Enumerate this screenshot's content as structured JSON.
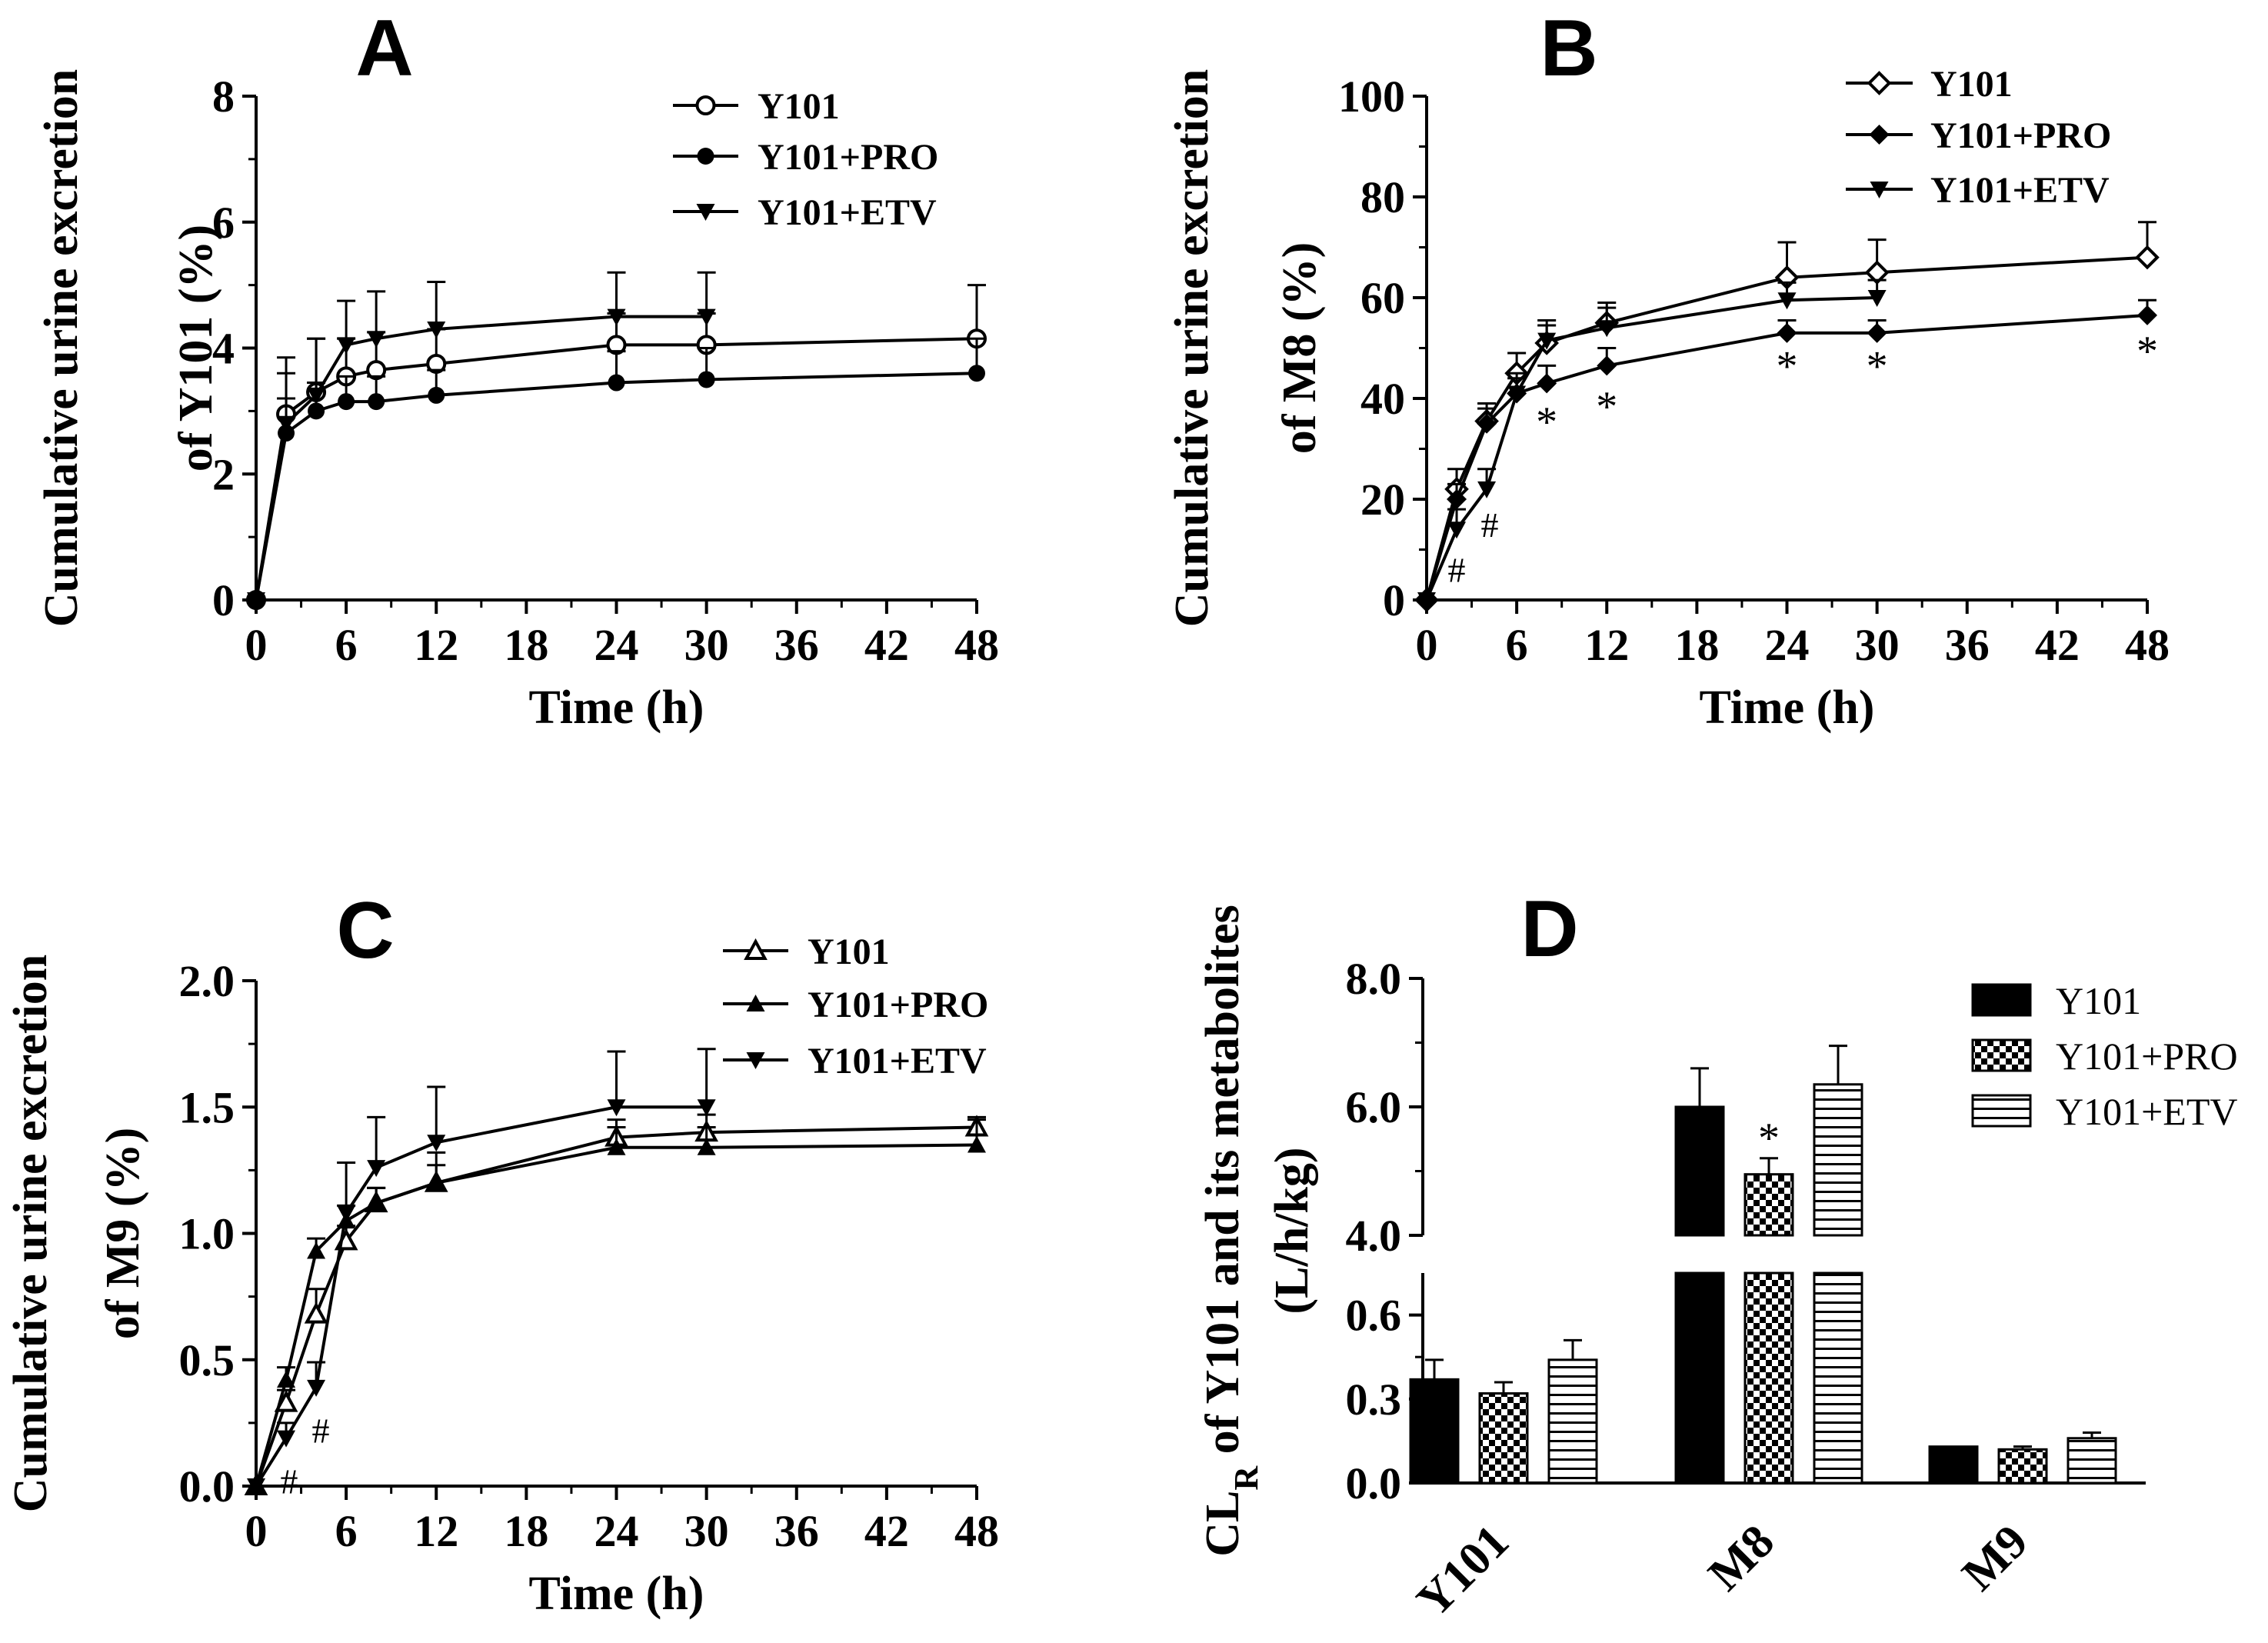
{
  "chart_data": [
    {
      "panel": "A",
      "type": "line",
      "ylabel": [
        "Cumulative urine excretion",
        "of Y101 (%)"
      ],
      "xlabel": "Time (h)",
      "xlim": [
        0,
        48
      ],
      "ylim": [
        0,
        8
      ],
      "xticks": [
        "0",
        "6",
        "12",
        "18",
        "24",
        "30",
        "36",
        "42",
        "48"
      ],
      "yticks": [
        "0",
        "2",
        "4",
        "6",
        "8"
      ],
      "series": [
        {
          "name": "Y101",
          "marker": "circle-open",
          "x": [
            0,
            2,
            4,
            6,
            8,
            12,
            24,
            30,
            48
          ],
          "values": [
            0,
            2.95,
            3.3,
            3.55,
            3.65,
            3.75,
            4.05,
            4.05,
            4.15
          ],
          "err": [
            0,
            0.9,
            0.85,
            0.6,
            0.6,
            0.55,
            0.5,
            0.5,
            0.85
          ]
        },
        {
          "name": "Y101+PRO",
          "marker": "circle-filled",
          "x": [
            0,
            2,
            4,
            6,
            8,
            12,
            24,
            30,
            48
          ],
          "values": [
            0,
            2.65,
            3.0,
            3.15,
            3.15,
            3.25,
            3.45,
            3.5,
            3.6
          ],
          "err": [
            0,
            0.55,
            0.45,
            0.4,
            0.4,
            0.4,
            0.5,
            0.5,
            0.55
          ]
        },
        {
          "name": "Y101+ETV",
          "marker": "triangle-down",
          "x": [
            0,
            2,
            4,
            6,
            8,
            12,
            24,
            30
          ],
          "values": [
            0,
            2.8,
            3.25,
            4.05,
            4.15,
            4.3,
            4.5,
            4.5
          ],
          "err": [
            0,
            0.8,
            0.9,
            0.7,
            0.75,
            0.75,
            0.7,
            0.7
          ]
        }
      ]
    },
    {
      "panel": "B",
      "type": "line",
      "ylabel": [
        "Cumulative urine excretion",
        "of M8 (%)"
      ],
      "xlabel": "Time (h)",
      "xlim": [
        0,
        48
      ],
      "ylim": [
        0,
        100
      ],
      "xticks": [
        "0",
        "6",
        "12",
        "18",
        "24",
        "30",
        "36",
        "42",
        "48"
      ],
      "yticks": [
        "0",
        "20",
        "40",
        "60",
        "80",
        "100"
      ],
      "series": [
        {
          "name": "Y101",
          "marker": "diamond-open",
          "x": [
            0,
            2,
            4,
            6,
            8,
            12,
            24,
            30,
            48
          ],
          "values": [
            0,
            22,
            35.5,
            45,
            51,
            55,
            64,
            65,
            68
          ],
          "err": [
            0,
            4,
            3.5,
            4,
            3.5,
            4,
            7,
            6.5,
            7
          ]
        },
        {
          "name": "Y101+PRO",
          "marker": "diamond-filled",
          "x": [
            0,
            2,
            4,
            6,
            8,
            12,
            24,
            30,
            48
          ],
          "values": [
            0,
            20,
            35,
            41,
            43,
            46.5,
            53,
            53,
            56.5
          ],
          "err": [
            0,
            3,
            3,
            3,
            3.5,
            3.5,
            2.5,
            2.5,
            3
          ]
        },
        {
          "name": "Y101+ETV",
          "marker": "triangle-down",
          "x": [
            0,
            2,
            4,
            6,
            8,
            12,
            24,
            30
          ],
          "values": [
            0,
            14,
            22,
            41,
            51.5,
            54,
            59.5,
            60
          ],
          "err": [
            0,
            4,
            4,
            4,
            4,
            4,
            3.5,
            3.5
          ]
        }
      ],
      "annotations": [
        {
          "text": "#",
          "x": 2,
          "y": 6
        },
        {
          "text": "#",
          "x": 4.2,
          "y": 15
        },
        {
          "text": "*",
          "x": 8,
          "y": 35
        },
        {
          "text": "*",
          "x": 12,
          "y": 38
        },
        {
          "text": "*",
          "x": 24,
          "y": 46
        },
        {
          "text": "*",
          "x": 30,
          "y": 46
        },
        {
          "text": "*",
          "x": 48,
          "y": 49
        }
      ]
    },
    {
      "panel": "C",
      "type": "line",
      "ylabel": [
        "Cumulative urine excretion",
        "of M9 (%)"
      ],
      "xlabel": "Time (h)",
      "xlim": [
        0,
        48
      ],
      "ylim": [
        0,
        2
      ],
      "xticks": [
        "0",
        "6",
        "12",
        "18",
        "24",
        "30",
        "36",
        "42",
        "48"
      ],
      "yticks": [
        "0.0",
        "0.5",
        "1.0",
        "1.5",
        "2.0"
      ],
      "series": [
        {
          "name": "Y101",
          "marker": "triangle-open",
          "x": [
            0,
            2,
            4,
            6,
            8,
            12,
            24,
            30,
            48
          ],
          "values": [
            0,
            0.33,
            0.68,
            0.97,
            1.12,
            1.2,
            1.38,
            1.4,
            1.42
          ],
          "err": [
            0,
            0.05,
            0.1,
            0.06,
            0.06,
            0.07,
            0.07,
            0.07,
            0.04
          ]
        },
        {
          "name": "Y101+PRO",
          "marker": "triangle-filled",
          "x": [
            0,
            2,
            4,
            6,
            8,
            12,
            24,
            30,
            48
          ],
          "values": [
            0,
            0.42,
            0.93,
            1.05,
            1.12,
            1.2,
            1.34,
            1.34,
            1.35
          ],
          "err": [
            0,
            0.05,
            0.05,
            0.06,
            0.06,
            0.12,
            0.08,
            0.08,
            0.1
          ]
        },
        {
          "name": "Y101+ETV",
          "marker": "triangle-down",
          "x": [
            0,
            2,
            4,
            6,
            8,
            12,
            24,
            30
          ],
          "values": [
            0,
            0.19,
            0.39,
            1.08,
            1.26,
            1.36,
            1.5,
            1.5
          ],
          "err": [
            0,
            0.06,
            0.1,
            0.2,
            0.2,
            0.22,
            0.22,
            0.23
          ]
        }
      ],
      "annotations": [
        {
          "text": "#",
          "x": 2.2,
          "y": 0.02
        },
        {
          "text": "#",
          "x": 4.3,
          "y": 0.22
        }
      ]
    },
    {
      "panel": "D",
      "type": "bar",
      "ylabel": [
        "CL",
        "R",
        " of Y101 and its metabolites",
        "(L/h/kg)"
      ],
      "categories": [
        "Y101",
        "M8",
        "M9"
      ],
      "ylim_lower": [
        0,
        0.75
      ],
      "ylim_upper": [
        4.0,
        8.0
      ],
      "yticks_lower": [
        "0.0",
        "0.3",
        "0.6"
      ],
      "yticks_upper": [
        "4.0",
        "6.0",
        "8.0"
      ],
      "series": [
        {
          "name": "Y101",
          "fill": "solid",
          "values": [
            0.37,
            6.0,
            0.13
          ],
          "err": [
            0.07,
            0.6,
            0.0
          ]
        },
        {
          "name": "Y101+PRO",
          "fill": "checker",
          "values": [
            0.32,
            4.95,
            0.12
          ],
          "err": [
            0.04,
            0.25,
            0.01
          ]
        },
        {
          "name": "Y101+ETV",
          "fill": "hstripe",
          "values": [
            0.44,
            6.35,
            0.16
          ],
          "err": [
            0.07,
            0.6,
            0.02
          ]
        }
      ],
      "annotations": [
        {
          "text": "*",
          "category": "M8",
          "series": "Y101+PRO"
        }
      ]
    }
  ]
}
